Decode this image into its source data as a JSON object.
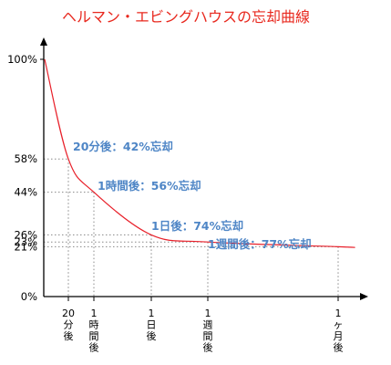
{
  "chart_data": {
    "type": "line",
    "title": "ヘルマン・エビングハウスの忘却曲線",
    "y_ticks": [
      "100%",
      "58%",
      "44%",
      "26%",
      "23%",
      "21%",
      "0%"
    ],
    "x_ticks": [
      "20分後",
      "1時間後",
      "1日後",
      "1週間後",
      "1ヶ月後"
    ],
    "series": [
      {
        "name": "",
        "color": "#e8202a",
        "points": [
          {
            "x": "0",
            "y": 100
          },
          {
            "x": "20分後",
            "y": 58
          },
          {
            "x": "1時間後",
            "y": 44
          },
          {
            "x": "1日後",
            "y": 26
          },
          {
            "x": "1週間後",
            "y": 23
          },
          {
            "x": "1ヶ月後",
            "y": 21
          }
        ]
      }
    ],
    "ylim": [
      0,
      100
    ],
    "grid": "dotted guides at data points",
    "annotations": [
      {
        "text": "20分後：42%忘却"
      },
      {
        "text": "1時間後：56%忘却"
      },
      {
        "text": "1日後：74%忘却"
      },
      {
        "text": "1週間後：77%忘却"
      }
    ]
  }
}
